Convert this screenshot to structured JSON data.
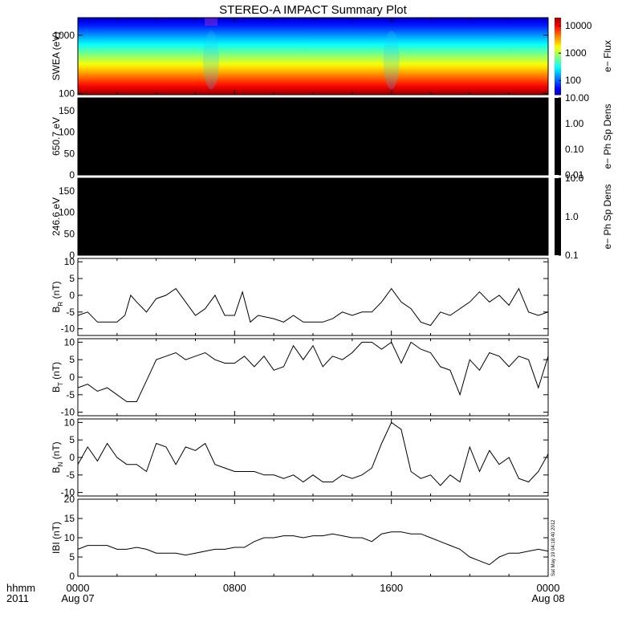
{
  "title": "STEREO-A IMPACT Summary Plot",
  "timestamp": "Sat May 19 04:18:40 2012",
  "x_axis": {
    "left_labels": [
      "hhmm",
      "2011"
    ],
    "ticks": [
      {
        "hour": 0,
        "line1": "0000",
        "line2": "Aug 07"
      },
      {
        "hour": 8,
        "line1": "0800",
        "line2": ""
      },
      {
        "hour": 16,
        "line1": "1600",
        "line2": ""
      },
      {
        "hour": 24,
        "line1": "0000",
        "line2": "Aug 08"
      }
    ],
    "range_hours": [
      0,
      24
    ]
  },
  "chart_data": [
    {
      "type": "heatmap",
      "ylabel": "SWEA (eV)",
      "ylog": true,
      "ylim": [
        95,
        2000
      ],
      "yticks": [
        {
          "v": 100,
          "label": "100"
        },
        {
          "v": 1000,
          "label": "1000"
        }
      ],
      "colorbar": {
        "label": "e− Flux",
        "log": true,
        "range": [
          30,
          20000
        ],
        "ticks": [
          {
            "v": 100,
            "label": "100"
          },
          {
            "v": 1000,
            "label": "1000"
          },
          {
            "v": 10000,
            "label": "10000"
          }
        ]
      },
      "dips_hours": [
        6.8,
        16.0
      ],
      "colors": {
        "low": "#2020ff",
        "high": "#ff1010"
      }
    },
    {
      "type": "heatmap",
      "ylabel": "650.7 eV",
      "ylim": [
        0,
        180
      ],
      "yticks": [
        {
          "v": 0,
          "label": "0"
        },
        {
          "v": 50,
          "label": "50"
        },
        {
          "v": 100,
          "label": "100"
        },
        {
          "v": 150,
          "label": "150"
        }
      ],
      "fill": "#000000",
      "colorbar": {
        "label": "e− Ph Sp Dens",
        "log": true,
        "range": [
          0.01,
          10
        ],
        "ticks": [
          {
            "v": 0.01,
            "label": "0.01"
          },
          {
            "v": 0.1,
            "label": "0.10"
          },
          {
            "v": 1,
            "label": "1.00"
          },
          {
            "v": 10,
            "label": "10.00"
          }
        ]
      }
    },
    {
      "type": "heatmap",
      "ylabel": "246.6 eV",
      "ylim": [
        0,
        180
      ],
      "yticks": [
        {
          "v": 0,
          "label": "0"
        },
        {
          "v": 50,
          "label": "50"
        },
        {
          "v": 100,
          "label": "100"
        },
        {
          "v": 150,
          "label": "150"
        }
      ],
      "fill": "#000000",
      "colorbar": {
        "label": "e− Ph Sp Dens",
        "log": true,
        "range": [
          0.1,
          10
        ],
        "ticks": [
          {
            "v": 0.1,
            "label": "0.1"
          },
          {
            "v": 1,
            "label": "1.0"
          },
          {
            "v": 10,
            "label": "10.0"
          }
        ]
      }
    },
    {
      "type": "line",
      "ylabel_main": "B",
      "ylabel_sub": "R",
      "ylabel_unit": " (nT)",
      "ylim": [
        -12,
        11
      ],
      "yticks": [
        {
          "v": -10,
          "label": "-10"
        },
        {
          "v": -5,
          "label": "-5"
        },
        {
          "v": 0,
          "label": "0"
        },
        {
          "v": 5,
          "label": "5"
        },
        {
          "v": 10,
          "label": "10"
        }
      ],
      "x": [
        0,
        0.5,
        1,
        1.5,
        2,
        2.4,
        2.7,
        3,
        3.5,
        4,
        4.5,
        5,
        5.5,
        6,
        6.5,
        7,
        7.5,
        8,
        8.4,
        8.8,
        9.2,
        10,
        10.5,
        11,
        11.5,
        12,
        12.5,
        13,
        13.5,
        14,
        14.5,
        15,
        15.5,
        16,
        16.5,
        17,
        17.5,
        18,
        18.5,
        19,
        19.5,
        20,
        20.5,
        21,
        21.5,
        22,
        22.5,
        23,
        23.5,
        24
      ],
      "y": [
        -6,
        -5,
        -8,
        -8,
        -8,
        -6,
        0,
        -2,
        -5,
        -1,
        0,
        2,
        -2,
        -6,
        -4,
        0,
        -6,
        -6,
        1,
        -8,
        -6,
        -7,
        -8,
        -6,
        -8,
        -8,
        -8,
        -7,
        -5,
        -6,
        -5,
        -5,
        -2,
        2,
        -2,
        -4,
        -8,
        -9,
        -5,
        -6,
        -4,
        -2,
        1,
        -2,
        0,
        -3,
        2,
        -5,
        -6,
        -5
      ]
    },
    {
      "type": "line",
      "ylabel_main": "B",
      "ylabel_sub": "T",
      "ylabel_unit": " (nT)",
      "ylim": [
        -11,
        11
      ],
      "yticks": [
        {
          "v": -10,
          "label": "-10"
        },
        {
          "v": -5,
          "label": "-5"
        },
        {
          "v": 0,
          "label": "0"
        },
        {
          "v": 5,
          "label": "5"
        },
        {
          "v": 10,
          "label": "10"
        }
      ],
      "x": [
        0,
        0.5,
        1,
        1.5,
        2,
        2.5,
        3,
        3.5,
        4,
        4.5,
        5,
        5.5,
        6,
        6.5,
        7,
        7.5,
        8,
        8.5,
        9,
        9.5,
        10,
        10.5,
        11,
        11.5,
        12,
        12.5,
        13,
        13.5,
        14,
        14.5,
        15,
        15.5,
        16,
        16.5,
        17,
        17.5,
        18,
        18.5,
        19,
        19.5,
        20,
        20.5,
        21,
        21.5,
        22,
        22.5,
        23,
        23.5,
        24
      ],
      "y": [
        -3,
        -2,
        -4,
        -3,
        -5,
        -7,
        -7,
        -1,
        5,
        6,
        7,
        5,
        6,
        7,
        5,
        4,
        4,
        6,
        3,
        6,
        2,
        3,
        9,
        5,
        9,
        3,
        6,
        5,
        7,
        10,
        10,
        8,
        10,
        4,
        10,
        8,
        7,
        3,
        2,
        -5,
        5,
        2,
        7,
        6,
        3,
        6,
        5,
        -3,
        6
      ]
    },
    {
      "type": "line",
      "ylabel_main": "B",
      "ylabel_sub": "N",
      "ylabel_unit": " (nT)",
      "ylim": [
        -11,
        11
      ],
      "yticks": [
        {
          "v": -10,
          "label": "-10"
        },
        {
          "v": -5,
          "label": "-5"
        },
        {
          "v": 0,
          "label": "0"
        },
        {
          "v": 5,
          "label": "5"
        },
        {
          "v": 10,
          "label": "10"
        }
      ],
      "x": [
        0,
        0.5,
        1,
        1.5,
        2,
        2.5,
        3,
        3.5,
        4,
        4.5,
        5,
        5.5,
        6,
        6.5,
        7,
        7.5,
        8,
        8.5,
        9,
        9.5,
        10,
        10.5,
        11,
        11.5,
        12,
        12.5,
        13,
        13.5,
        14,
        14.5,
        15,
        15.5,
        16,
        16.5,
        17,
        17.5,
        18,
        18.5,
        19,
        19.5,
        20,
        20.5,
        21,
        21.5,
        22,
        22.5,
        23,
        23.5,
        24
      ],
      "y": [
        -2,
        3,
        -1,
        4,
        0,
        -2,
        -2,
        -4,
        4,
        3,
        -2,
        3,
        2,
        4,
        -2,
        -3,
        -4,
        -4,
        -4,
        -5,
        -5,
        -6,
        -5,
        -7,
        -5,
        -7,
        -7,
        -5,
        -6,
        -5,
        -3,
        4,
        10,
        8,
        -4,
        -6,
        -5,
        -8,
        -5,
        -7,
        3,
        -4,
        2,
        -2,
        0,
        -6,
        -7,
        -4,
        1
      ]
    },
    {
      "type": "line",
      "ylabel_main": "IBI",
      "ylabel_sub": "",
      "ylabel_unit": " (nT)",
      "ylim": [
        0,
        20
      ],
      "yticks": [
        {
          "v": 0,
          "label": "0"
        },
        {
          "v": 5,
          "label": "5"
        },
        {
          "v": 10,
          "label": "10"
        },
        {
          "v": 15,
          "label": "15"
        },
        {
          "v": 20,
          "label": "20"
        }
      ],
      "x": [
        0,
        0.5,
        1,
        1.5,
        2,
        2.5,
        3,
        3.5,
        4,
        4.5,
        5,
        5.5,
        6,
        6.5,
        7,
        7.5,
        8,
        8.5,
        9,
        9.5,
        10,
        10.5,
        11,
        11.5,
        12,
        12.5,
        13,
        13.5,
        14,
        14.5,
        15,
        15.5,
        16,
        16.5,
        17,
        17.5,
        18,
        18.5,
        19,
        19.5,
        20,
        20.5,
        21,
        21.5,
        22,
        22.5,
        23,
        23.5,
        24
      ],
      "y": [
        7,
        8,
        8,
        8,
        7,
        7,
        7.5,
        7,
        6,
        6,
        6,
        5.5,
        6,
        6.5,
        7,
        7,
        7.5,
        7.5,
        9,
        10,
        10,
        10.5,
        10.5,
        10,
        10.5,
        10.5,
        11,
        10.5,
        10,
        10,
        9,
        11,
        11.5,
        11.5,
        11,
        11,
        10,
        9,
        8,
        7,
        5,
        4,
        3,
        5,
        6,
        6,
        6.5,
        7,
        6.5
      ]
    }
  ]
}
